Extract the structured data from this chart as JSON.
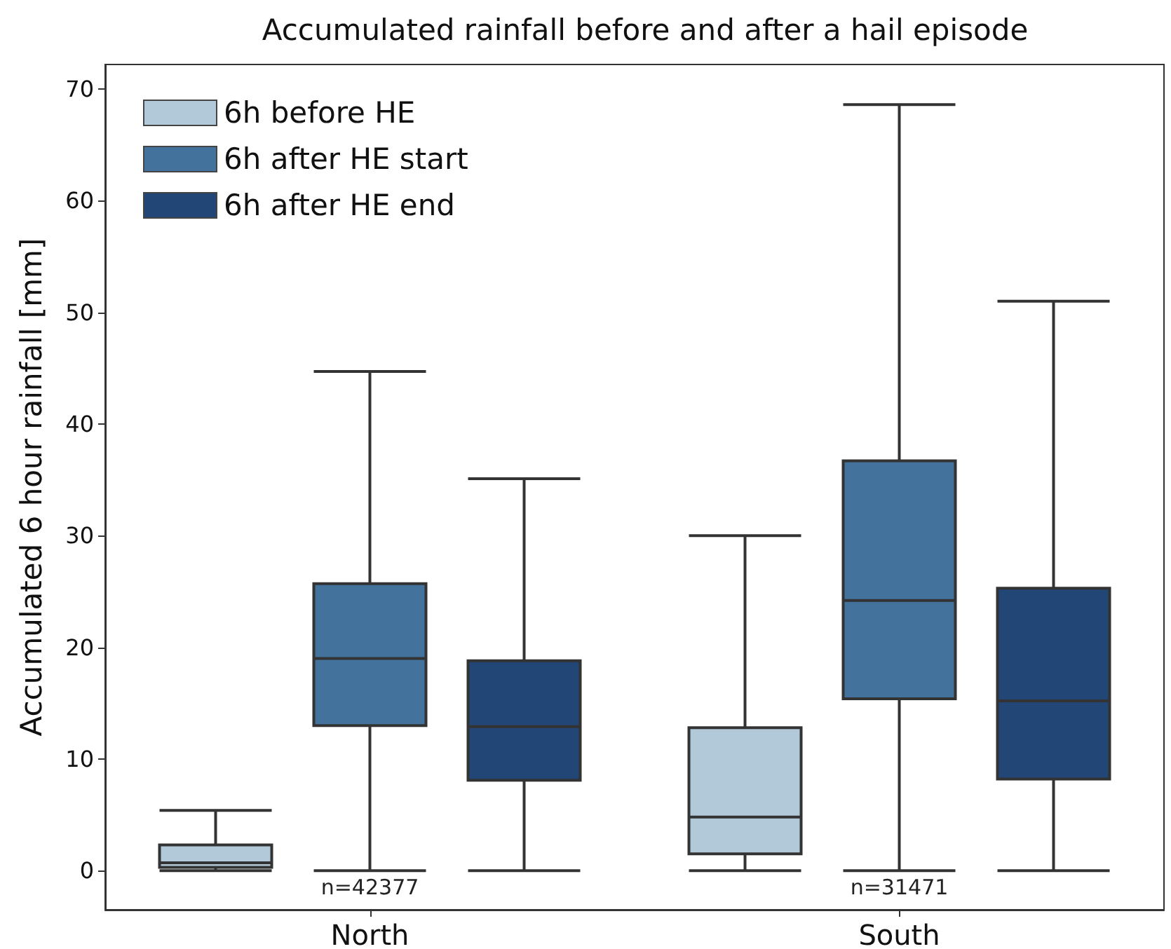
{
  "chart_data": {
    "type": "box",
    "title": "Accumulated rainfall before and after a hail episode",
    "ylabel": "Accumulated 6 hour rainfall [mm]",
    "categories": [
      "North",
      "South"
    ],
    "series": [
      {
        "name": "6h before HE",
        "color": "#b1c9d8",
        "boxes": [
          {
            "low": 0,
            "q1": 0.3,
            "median": 0.7,
            "q3": 2.3,
            "high": 5.4
          },
          {
            "low": 0,
            "q1": 1.5,
            "median": 4.8,
            "q3": 12.8,
            "high": 30
          }
        ]
      },
      {
        "name": "6h after HE start",
        "color": "#43739c",
        "boxes": [
          {
            "low": 0,
            "q1": 13,
            "median": 19,
            "q3": 25.7,
            "high": 44.7
          },
          {
            "low": 0,
            "q1": 15.4,
            "median": 24.2,
            "q3": 36.7,
            "high": 68.6
          }
        ]
      },
      {
        "name": "6h after HE end",
        "color": "#224675",
        "boxes": [
          {
            "low": 0,
            "q1": 8.1,
            "median": 12.9,
            "q3": 18.8,
            "high": 35.1
          },
          {
            "low": 0,
            "q1": 8.2,
            "median": 15.2,
            "q3": 25.3,
            "high": 51
          }
        ]
      }
    ],
    "ylim": [
      -3.5,
      72.2
    ],
    "yticks": [
      0,
      10,
      20,
      30,
      40,
      50,
      60,
      70
    ],
    "annotations": [
      "n=42377",
      "n=31471"
    ],
    "legend": "top left",
    "grid": false
  }
}
